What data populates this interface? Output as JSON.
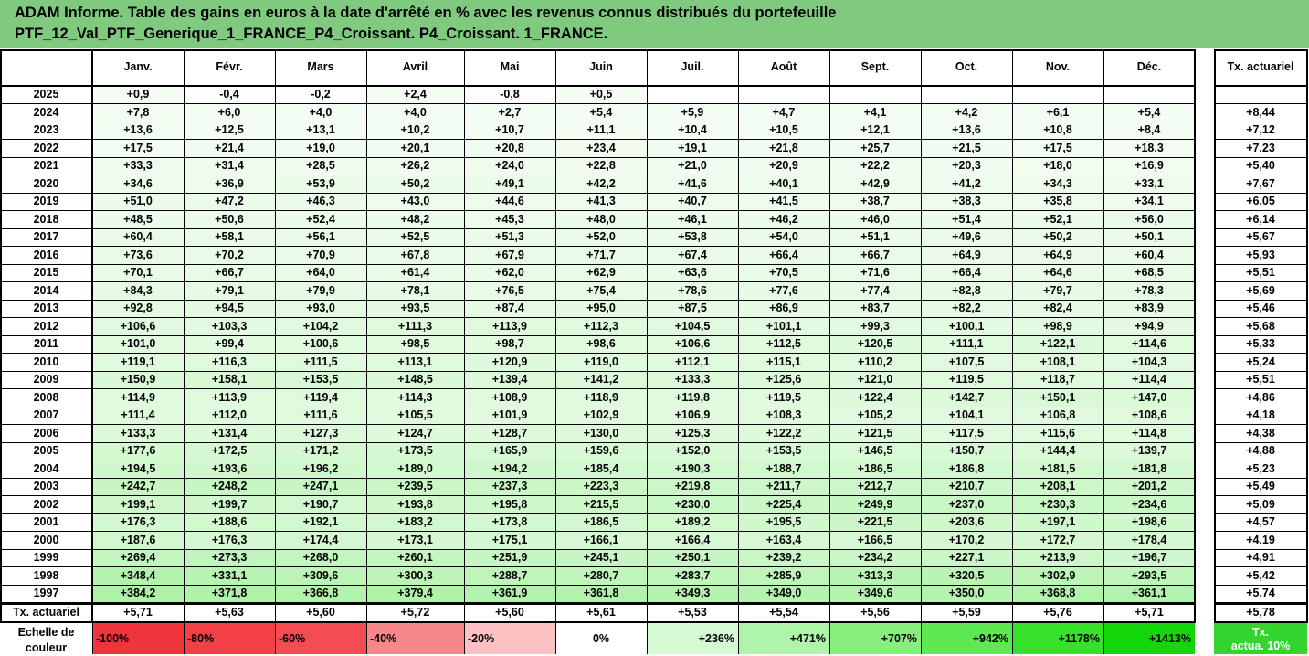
{
  "title": {
    "line1": "ADAM Informe. Table des gains en euros à la date d'arrêté en % avec les revenus connus distribués du portefeuille",
    "line2": "PTF_12_Val_PTF_Generique_1_FRANCE_P4_Croissant. P4_Croissant. 1_FRANCE."
  },
  "chart_data": {
    "type": "table",
    "months": [
      "Janv.",
      "Févr.",
      "Mars",
      "Avril",
      "Mai",
      "Juin",
      "Juil.",
      "Août",
      "Sept.",
      "Oct.",
      "Nov.",
      "Déc."
    ],
    "rate_header": "Tx. actuariel",
    "rows": [
      {
        "year": "2025",
        "values": [
          "+0,9",
          "-0,4",
          "-0,2",
          "+2,4",
          "-0,8",
          "+0,5",
          "",
          "",
          "",
          "",
          "",
          ""
        ],
        "rate": ""
      },
      {
        "year": "2024",
        "values": [
          "+7,8",
          "+6,0",
          "+4,0",
          "+4,0",
          "+2,7",
          "+5,4",
          "+5,9",
          "+4,7",
          "+4,1",
          "+4,2",
          "+6,1",
          "+5,4"
        ],
        "rate": "+8,44"
      },
      {
        "year": "2023",
        "values": [
          "+13,6",
          "+12,5",
          "+13,1",
          "+10,2",
          "+10,7",
          "+11,1",
          "+10,4",
          "+10,5",
          "+12,1",
          "+13,6",
          "+10,8",
          "+8,4"
        ],
        "rate": "+7,12"
      },
      {
        "year": "2022",
        "values": [
          "+17,5",
          "+21,4",
          "+19,0",
          "+20,1",
          "+20,8",
          "+23,4",
          "+19,1",
          "+21,8",
          "+25,7",
          "+21,5",
          "+17,5",
          "+18,3"
        ],
        "rate": "+7,23"
      },
      {
        "year": "2021",
        "values": [
          "+33,3",
          "+31,4",
          "+28,5",
          "+26,2",
          "+24,0",
          "+22,8",
          "+21,0",
          "+20,9",
          "+22,2",
          "+20,3",
          "+18,0",
          "+16,9"
        ],
        "rate": "+5,40"
      },
      {
        "year": "2020",
        "values": [
          "+34,6",
          "+36,9",
          "+53,9",
          "+50,2",
          "+49,1",
          "+42,2",
          "+41,6",
          "+40,1",
          "+42,9",
          "+41,2",
          "+34,3",
          "+33,1"
        ],
        "rate": "+7,67"
      },
      {
        "year": "2019",
        "values": [
          "+51,0",
          "+47,2",
          "+46,3",
          "+43,0",
          "+44,6",
          "+41,3",
          "+40,7",
          "+41,5",
          "+38,7",
          "+38,3",
          "+35,8",
          "+34,1"
        ],
        "rate": "+6,05"
      },
      {
        "year": "2018",
        "values": [
          "+48,5",
          "+50,6",
          "+52,4",
          "+48,2",
          "+45,3",
          "+48,0",
          "+46,1",
          "+46,2",
          "+46,0",
          "+51,4",
          "+52,1",
          "+56,0"
        ],
        "rate": "+6,14"
      },
      {
        "year": "2017",
        "values": [
          "+60,4",
          "+58,1",
          "+56,1",
          "+52,5",
          "+51,3",
          "+52,0",
          "+53,8",
          "+54,0",
          "+51,1",
          "+49,6",
          "+50,2",
          "+50,1"
        ],
        "rate": "+5,67"
      },
      {
        "year": "2016",
        "values": [
          "+73,6",
          "+70,2",
          "+70,9",
          "+67,8",
          "+67,9",
          "+71,7",
          "+67,4",
          "+66,4",
          "+66,7",
          "+64,9",
          "+64,9",
          "+60,4"
        ],
        "rate": "+5,93"
      },
      {
        "year": "2015",
        "values": [
          "+70,1",
          "+66,7",
          "+64,0",
          "+61,4",
          "+62,0",
          "+62,9",
          "+63,6",
          "+70,5",
          "+71,6",
          "+66,4",
          "+64,6",
          "+68,5"
        ],
        "rate": "+5,51"
      },
      {
        "year": "2014",
        "values": [
          "+84,3",
          "+79,1",
          "+79,9",
          "+78,1",
          "+76,5",
          "+75,4",
          "+78,6",
          "+77,6",
          "+77,4",
          "+82,8",
          "+79,7",
          "+78,3"
        ],
        "rate": "+5,69"
      },
      {
        "year": "2013",
        "values": [
          "+92,8",
          "+94,5",
          "+93,0",
          "+93,5",
          "+87,4",
          "+95,0",
          "+87,5",
          "+86,9",
          "+83,7",
          "+82,2",
          "+82,4",
          "+83,9"
        ],
        "rate": "+5,46"
      },
      {
        "year": "2012",
        "values": [
          "+106,6",
          "+103,3",
          "+104,2",
          "+111,3",
          "+113,9",
          "+112,3",
          "+104,5",
          "+101,1",
          "+99,3",
          "+100,1",
          "+98,9",
          "+94,9"
        ],
        "rate": "+5,68"
      },
      {
        "year": "2011",
        "values": [
          "+101,0",
          "+99,4",
          "+100,6",
          "+98,5",
          "+98,7",
          "+98,6",
          "+106,6",
          "+112,5",
          "+120,5",
          "+111,1",
          "+122,1",
          "+114,6"
        ],
        "rate": "+5,33"
      },
      {
        "year": "2010",
        "values": [
          "+119,1",
          "+116,3",
          "+111,5",
          "+113,1",
          "+120,9",
          "+119,0",
          "+112,1",
          "+115,1",
          "+110,2",
          "+107,5",
          "+108,1",
          "+104,3"
        ],
        "rate": "+5,24"
      },
      {
        "year": "2009",
        "values": [
          "+150,9",
          "+158,1",
          "+153,5",
          "+148,5",
          "+139,4",
          "+141,2",
          "+133,3",
          "+125,6",
          "+121,0",
          "+119,5",
          "+118,7",
          "+114,4"
        ],
        "rate": "+5,51"
      },
      {
        "year": "2008",
        "values": [
          "+114,9",
          "+113,9",
          "+119,4",
          "+114,3",
          "+108,9",
          "+118,9",
          "+119,8",
          "+119,5",
          "+122,4",
          "+142,7",
          "+150,1",
          "+147,0"
        ],
        "rate": "+4,86"
      },
      {
        "year": "2007",
        "values": [
          "+111,4",
          "+112,0",
          "+111,6",
          "+105,5",
          "+101,9",
          "+102,9",
          "+106,9",
          "+108,3",
          "+105,2",
          "+104,1",
          "+106,8",
          "+108,6"
        ],
        "rate": "+4,18"
      },
      {
        "year": "2006",
        "values": [
          "+133,3",
          "+131,4",
          "+127,3",
          "+124,7",
          "+128,7",
          "+130,0",
          "+125,3",
          "+122,2",
          "+121,5",
          "+117,5",
          "+115,6",
          "+114,8"
        ],
        "rate": "+4,38"
      },
      {
        "year": "2005",
        "values": [
          "+177,6",
          "+172,5",
          "+171,2",
          "+173,5",
          "+165,9",
          "+159,6",
          "+152,0",
          "+153,5",
          "+146,5",
          "+150,7",
          "+144,4",
          "+139,7"
        ],
        "rate": "+4,88"
      },
      {
        "year": "2004",
        "values": [
          "+194,5",
          "+193,6",
          "+196,2",
          "+189,0",
          "+194,2",
          "+185,4",
          "+190,3",
          "+188,7",
          "+186,5",
          "+186,8",
          "+181,5",
          "+181,8"
        ],
        "rate": "+5,23"
      },
      {
        "year": "2003",
        "values": [
          "+242,7",
          "+248,2",
          "+247,1",
          "+239,5",
          "+237,3",
          "+223,3",
          "+219,8",
          "+211,7",
          "+212,7",
          "+210,7",
          "+208,1",
          "+201,2"
        ],
        "rate": "+5,49"
      },
      {
        "year": "2002",
        "values": [
          "+199,1",
          "+199,7",
          "+190,7",
          "+193,8",
          "+195,8",
          "+215,5",
          "+230,0",
          "+225,4",
          "+249,9",
          "+237,0",
          "+230,3",
          "+234,6"
        ],
        "rate": "+5,09"
      },
      {
        "year": "2001",
        "values": [
          "+176,3",
          "+188,6",
          "+192,1",
          "+183,2",
          "+173,8",
          "+186,5",
          "+189,2",
          "+195,5",
          "+221,5",
          "+203,6",
          "+197,1",
          "+198,6"
        ],
        "rate": "+4,57"
      },
      {
        "year": "2000",
        "values": [
          "+187,6",
          "+176,3",
          "+174,4",
          "+173,1",
          "+175,1",
          "+166,1",
          "+166,4",
          "+163,4",
          "+166,5",
          "+170,2",
          "+172,7",
          "+178,4"
        ],
        "rate": "+4,19"
      },
      {
        "year": "1999",
        "values": [
          "+269,4",
          "+273,3",
          "+268,0",
          "+260,1",
          "+251,9",
          "+245,1",
          "+250,1",
          "+239,2",
          "+234,2",
          "+227,1",
          "+213,9",
          "+196,7"
        ],
        "rate": "+4,91"
      },
      {
        "year": "1998",
        "values": [
          "+348,4",
          "+331,1",
          "+309,6",
          "+300,3",
          "+288,7",
          "+280,7",
          "+283,7",
          "+285,9",
          "+313,3",
          "+320,5",
          "+302,9",
          "+293,5"
        ],
        "rate": "+5,42"
      },
      {
        "year": "1997",
        "values": [
          "+384,2",
          "+371,8",
          "+366,8",
          "+379,4",
          "+361,9",
          "+361,8",
          "+349,3",
          "+349,0",
          "+349,6",
          "+350,0",
          "+368,8",
          "+361,1"
        ],
        "rate": "+5,74"
      }
    ],
    "footer_row": {
      "label": "Tx. actuariel",
      "values": [
        "+5,71",
        "+5,63",
        "+5,60",
        "+5,72",
        "+5,60",
        "+5,61",
        "+5,53",
        "+5,54",
        "+5,56",
        "+5,59",
        "+5,76",
        "+5,71"
      ],
      "rate": "+5,78"
    },
    "color_scale": {
      "label_line1": "Echelle de",
      "label_line2": "couleur",
      "steps": [
        {
          "label": "-100%",
          "color": "#f0343c"
        },
        {
          "label": "-80%",
          "color": "#f24046"
        },
        {
          "label": "-60%",
          "color": "#f34c52"
        },
        {
          "label": "-40%",
          "color": "#f8878b"
        },
        {
          "label": "-20%",
          "color": "#fbc1c3"
        },
        {
          "label": "0%",
          "color": "#ffffff"
        },
        {
          "label": "+236%",
          "color": "#d5fad3"
        },
        {
          "label": "+471%",
          "color": "#aff5a9"
        },
        {
          "label": "+707%",
          "color": "#88ef7e"
        },
        {
          "label": "+942%",
          "color": "#5ee852"
        },
        {
          "label": "+1178%",
          "color": "#37e12a"
        },
        {
          "label": "+1413%",
          "color": "#14d60a"
        }
      ],
      "rate_label_line1": "Tx.",
      "rate_label_line2": "actua. 10%",
      "rate_color": "#32d42e"
    }
  }
}
